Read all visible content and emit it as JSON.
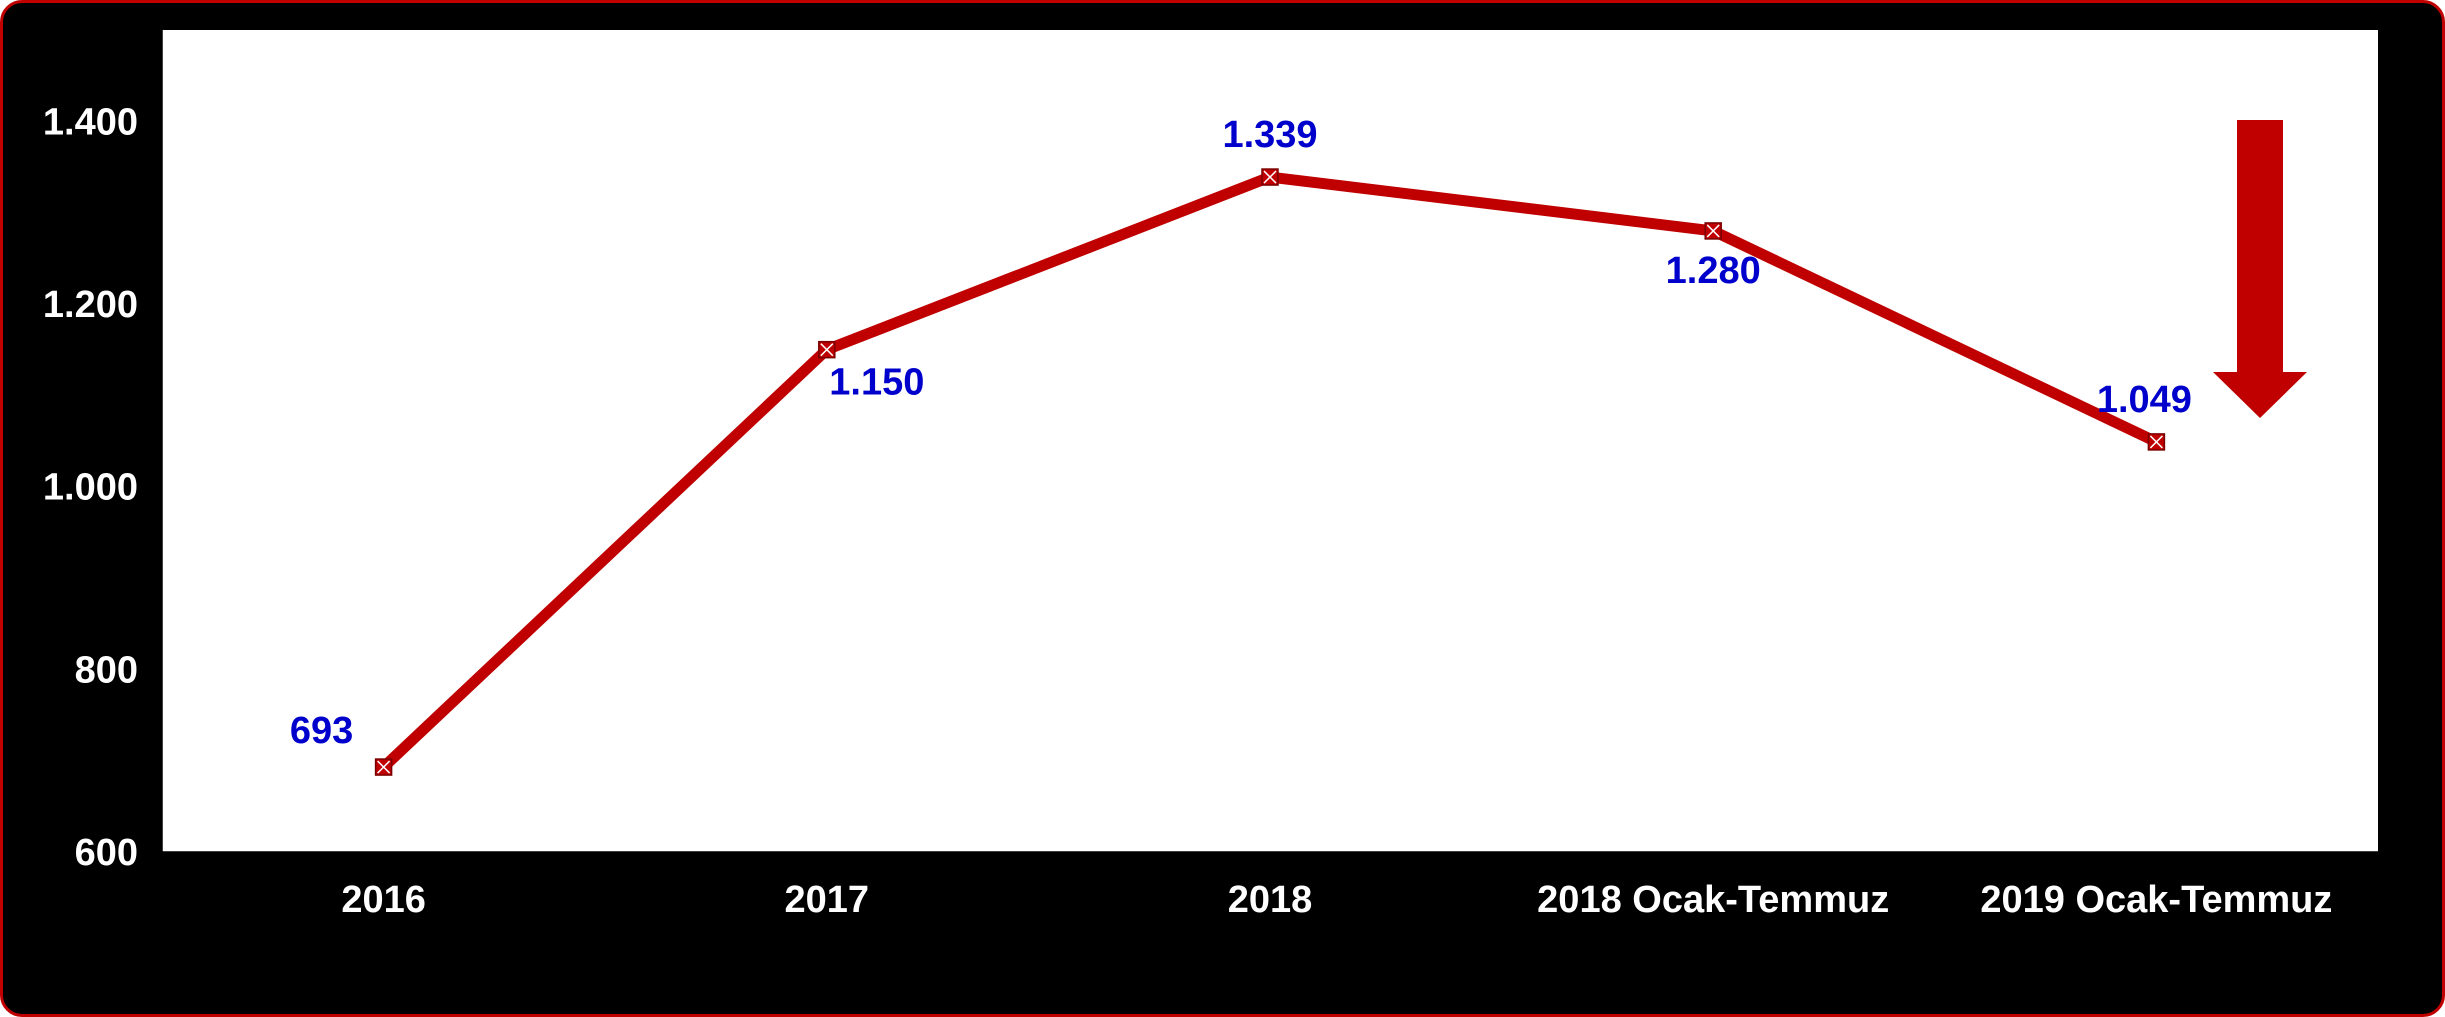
{
  "chart_data": {
    "type": "line",
    "categories": [
      "2016",
      "2017",
      "2018",
      "2018 Ocak-Temmuz",
      "2019 Ocak-Temmuz"
    ],
    "series": [
      {
        "values": [
          693,
          1150,
          1339,
          1280,
          1049
        ]
      }
    ],
    "data_labels": [
      "693",
      "1.150",
      "1.339",
      "1.280",
      "1.049"
    ],
    "y_ticks": [
      {
        "value": 600,
        "label": "600"
      },
      {
        "value": 800,
        "label": "800"
      },
      {
        "value": 1000,
        "label": "1.000"
      },
      {
        "value": 1200,
        "label": "1.200"
      },
      {
        "value": 1400,
        "label": "1.400"
      }
    ],
    "ylim": [
      600,
      1500
    ],
    "grid": false,
    "legend": "none",
    "annotation": "down-arrow",
    "colors": {
      "background": "#000000",
      "plot_area": "#ffffff",
      "line": "#c00000",
      "data_label": "#0000cc",
      "tick_label": "#ffffff",
      "arrow": "#c00000",
      "frame_border": "#c00000"
    }
  }
}
